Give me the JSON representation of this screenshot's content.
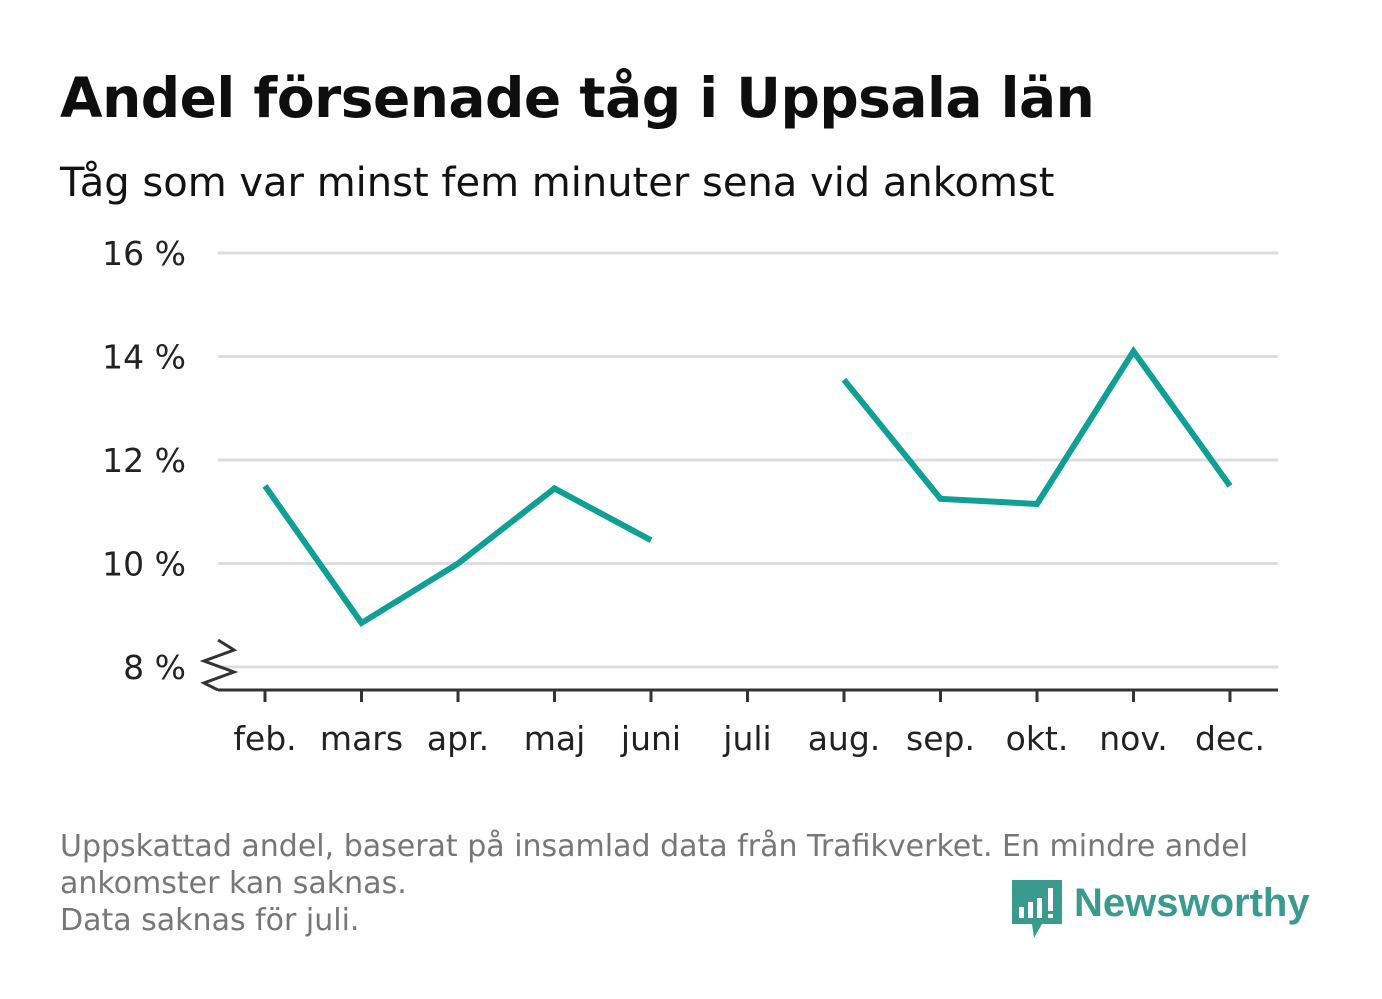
{
  "title": "Andel försenade tåg i Uppsala län",
  "subtitle": "Tåg som var minst fem minuter sena vid ankomst",
  "footer": {
    "line1": "Uppskattad andel, baserat på insamlad data från Trafikverket. En mindre andel",
    "line2": "ankomster kan saknas.",
    "line3": "Data saknas för juli."
  },
  "brand": {
    "name": "Newsworthy",
    "color": "#3b9a8e",
    "icon": "bar-chart-speech-bubble-icon"
  },
  "colors": {
    "line": "#0f9f95",
    "grid": "#dddddd",
    "axis": "#333333",
    "text": "#222222"
  },
  "chart_data": {
    "type": "line",
    "categories": [
      "feb.",
      "mars",
      "apr.",
      "maj",
      "juni",
      "juli",
      "aug.",
      "sep.",
      "okt.",
      "nov.",
      "dec."
    ],
    "series": [
      {
        "values": [
          11.5,
          8.85,
          10.0,
          11.45,
          10.45,
          null,
          13.55,
          11.25,
          11.15,
          14.1,
          11.5
        ]
      }
    ],
    "ylim": [
      8,
      16
    ],
    "yticks": [
      8,
      10,
      12,
      14,
      16
    ],
    "ytick_labels": [
      "8 %",
      "10 %",
      "12 %",
      "14 %",
      "16 %"
    ],
    "axis_break": true,
    "grid": true,
    "xlabel": "",
    "ylabel": ""
  }
}
